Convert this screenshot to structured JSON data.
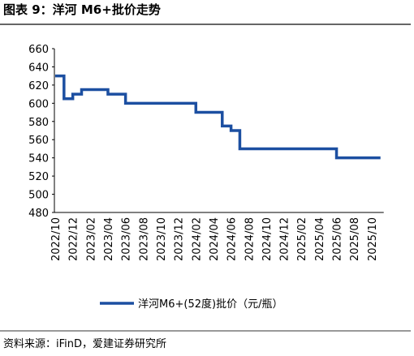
{
  "chart_data": {
    "type": "step-line",
    "title": "图表 9：洋河 M6+批价走势",
    "source": "资料来源：iFinD，爱建证券研究所",
    "x": [
      "2022/10",
      null,
      "2022/12",
      null,
      "2023/02",
      null,
      "2023/04",
      null,
      "2023/06",
      null,
      "2023/08",
      null,
      "2023/10",
      null,
      "2023/12",
      null,
      "2024/02",
      null,
      "2024/04",
      null,
      "2024/06",
      null,
      "2024/08",
      null,
      "2024/10",
      null,
      "2024/12",
      null,
      "2025/02",
      null,
      "2025/04",
      null,
      "2025/06",
      null,
      "2025/08",
      null,
      "2025/10",
      null
    ],
    "series": [
      {
        "name": "洋河M6+(52度)批价（元/瓶）",
        "color": "#1c4fa1",
        "values": [
          630,
          605,
          610,
          615,
          615,
          615,
          610,
          610,
          600,
          600,
          600,
          600,
          600,
          600,
          600,
          600,
          590,
          590,
          590,
          575,
          570,
          550,
          550,
          550,
          550,
          550,
          550,
          550,
          550,
          550,
          550,
          550,
          540,
          540,
          540,
          540,
          540,
          540
        ]
      }
    ],
    "ylim": [
      480,
      660
    ],
    "yticks": [
      480,
      500,
      520,
      540,
      560,
      580,
      600,
      620,
      640,
      660
    ],
    "legend": "bottom"
  }
}
